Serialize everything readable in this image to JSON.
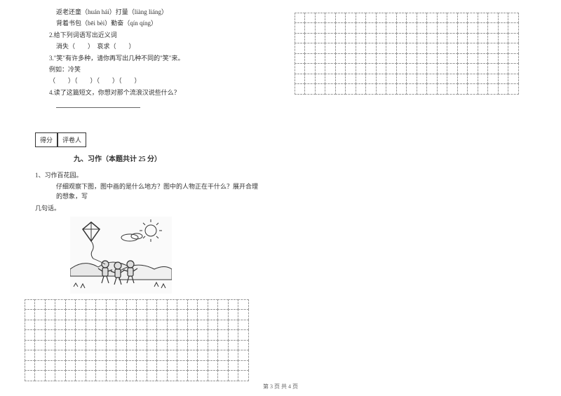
{
  "reading": {
    "line1": "返老还童（huán  hái）打量（liàng  liáng）",
    "line2": "背着书包（bēi  bèi）勤奋（qín  qíng）",
    "q2": "2.给下列词语写出近义词",
    "q2_words": "消失（　　）　哀求（　　）",
    "q3": "3.\"笑\"有许多种，请你再写出几种不同的\"笑\"来。",
    "q3_example": "例如：冷笑",
    "q3_blanks": "（　　）（　　）（　　）（　　）",
    "q4": "4.读了这篇短文，你想对那个流浪汉说些什么？"
  },
  "scoreLabels": {
    "score": "得分",
    "grader": "评卷人"
  },
  "section9": {
    "title": "九、习作（本题共计 25 分）",
    "instruction1": "1、习作百花园。",
    "instruction2": "仔细观察下图，图中画的是什么地方？图中的人物正在干什么？展开合理　的想象，写",
    "instruction3": "几句话。"
  },
  "grid": {
    "leftRows": 8,
    "leftCols": 22,
    "rightRows": 8,
    "rightCols": 22,
    "cellSize": 15.5
  },
  "footer": "第 3 页 共 4 页",
  "colors": {
    "text": "#333333",
    "border": "#999999",
    "background": "#ffffff"
  }
}
